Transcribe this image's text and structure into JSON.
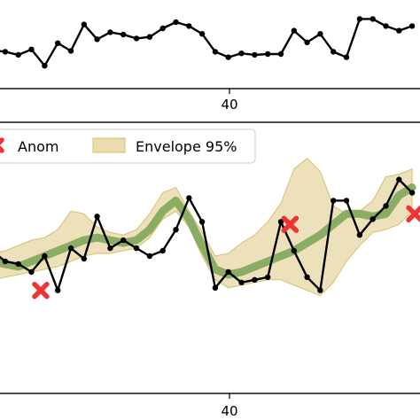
{
  "chart_data": [
    {
      "type": "line",
      "title": "",
      "xlabel": "",
      "ylabel": "",
      "xlim": [
        23.6,
        55.6
      ],
      "ylim": [
        0,
        1
      ],
      "xticks": [
        40
      ],
      "xtick_labels": [
        "40"
      ],
      "grid": false,
      "series": [
        {
          "color": "#000000",
          "marker": "dot",
          "x": [
            23,
            24,
            25,
            26,
            27,
            28,
            29,
            30,
            31,
            32,
            33,
            34,
            35,
            36,
            37,
            38,
            39,
            40,
            41,
            42,
            43,
            44,
            45,
            46,
            47,
            48,
            49,
            50,
            51,
            52,
            53,
            54,
            55
          ],
          "values": [
            0.47,
            0.45,
            0.41,
            0.48,
            0.27,
            0.56,
            0.46,
            0.8,
            0.61,
            0.7,
            0.67,
            0.62,
            0.64,
            0.75,
            0.83,
            0.78,
            0.68,
            0.45,
            0.38,
            0.43,
            0.41,
            0.42,
            0.42,
            0.72,
            0.57,
            0.68,
            0.45,
            0.38,
            0.87,
            0.87,
            0.78,
            0.72,
            0.78
          ]
        }
      ]
    },
    {
      "type": "line",
      "title": "",
      "xlabel": "",
      "ylabel": "",
      "xlim": [
        23.6,
        55.6
      ],
      "ylim": [
        0,
        1
      ],
      "xticks": [
        40
      ],
      "xtick_labels": [
        "40"
      ],
      "grid": false,
      "legend": {
        "placement": "top-left",
        "entries": [
          {
            "label": "Anom",
            "kind": "cross",
            "color": "#ee3333"
          },
          {
            "label": "Envelope 95%",
            "kind": "patch",
            "color": "#e9dcae"
          }
        ]
      },
      "x": [
        23,
        24,
        25,
        26,
        27,
        28,
        29,
        30,
        31,
        32,
        33,
        34,
        35,
        36,
        37,
        38,
        39,
        40,
        41,
        42,
        43,
        44,
        45,
        46,
        47,
        48,
        49,
        50,
        51,
        52,
        53,
        54,
        55
      ],
      "observed": [
        0.52,
        0.48,
        0.47,
        0.44,
        0.5,
        0.37,
        0.53,
        0.49,
        0.65,
        0.53,
        0.56,
        0.53,
        0.5,
        0.52,
        0.6,
        0.72,
        0.63,
        0.38,
        0.44,
        0.4,
        0.41,
        0.42,
        0.63,
        0.52,
        0.42,
        0.37,
        0.71,
        0.71,
        0.58,
        0.64,
        0.69,
        0.79,
        0.74
      ],
      "trend": [
        0.48,
        0.47,
        0.46,
        0.48,
        0.5,
        0.52,
        0.54,
        0.56,
        0.57,
        0.56,
        0.55,
        0.56,
        0.6,
        0.67,
        0.71,
        0.64,
        0.54,
        0.45,
        0.43,
        0.44,
        0.46,
        0.48,
        0.5,
        0.52,
        0.55,
        0.58,
        0.62,
        0.66,
        0.66,
        0.65,
        0.66,
        0.73,
        0.76
      ],
      "envelope_lower": [
        0.41,
        0.42,
        0.43,
        0.44,
        0.45,
        0.46,
        0.48,
        0.5,
        0.51,
        0.51,
        0.52,
        0.53,
        0.57,
        0.64,
        0.67,
        0.61,
        0.5,
        0.41,
        0.38,
        0.39,
        0.4,
        0.41,
        0.41,
        0.39,
        0.37,
        0.35,
        0.4,
        0.48,
        0.54,
        0.59,
        0.6,
        0.62,
        0.67
      ],
      "envelope_upper": [
        0.51,
        0.52,
        0.54,
        0.56,
        0.57,
        0.6,
        0.67,
        0.66,
        0.61,
        0.59,
        0.58,
        0.6,
        0.66,
        0.74,
        0.76,
        0.67,
        0.59,
        0.5,
        0.51,
        0.55,
        0.58,
        0.63,
        0.7,
        0.83,
        0.87,
        0.82,
        0.69,
        0.66,
        0.67,
        0.71,
        0.8,
        0.81,
        0.83
      ],
      "anomalies": [
        {
          "x": 26.7,
          "y": 0.37
        },
        {
          "x": 45.7,
          "y": 0.62
        },
        {
          "x": 55.2,
          "y": 0.66
        }
      ],
      "colors": {
        "observed": "#000000",
        "trend": "#7fa65a",
        "envelope_fill": "#e9dcae",
        "envelope_edge": "#d9bf6e",
        "anomaly": "#ee3333"
      }
    }
  ]
}
